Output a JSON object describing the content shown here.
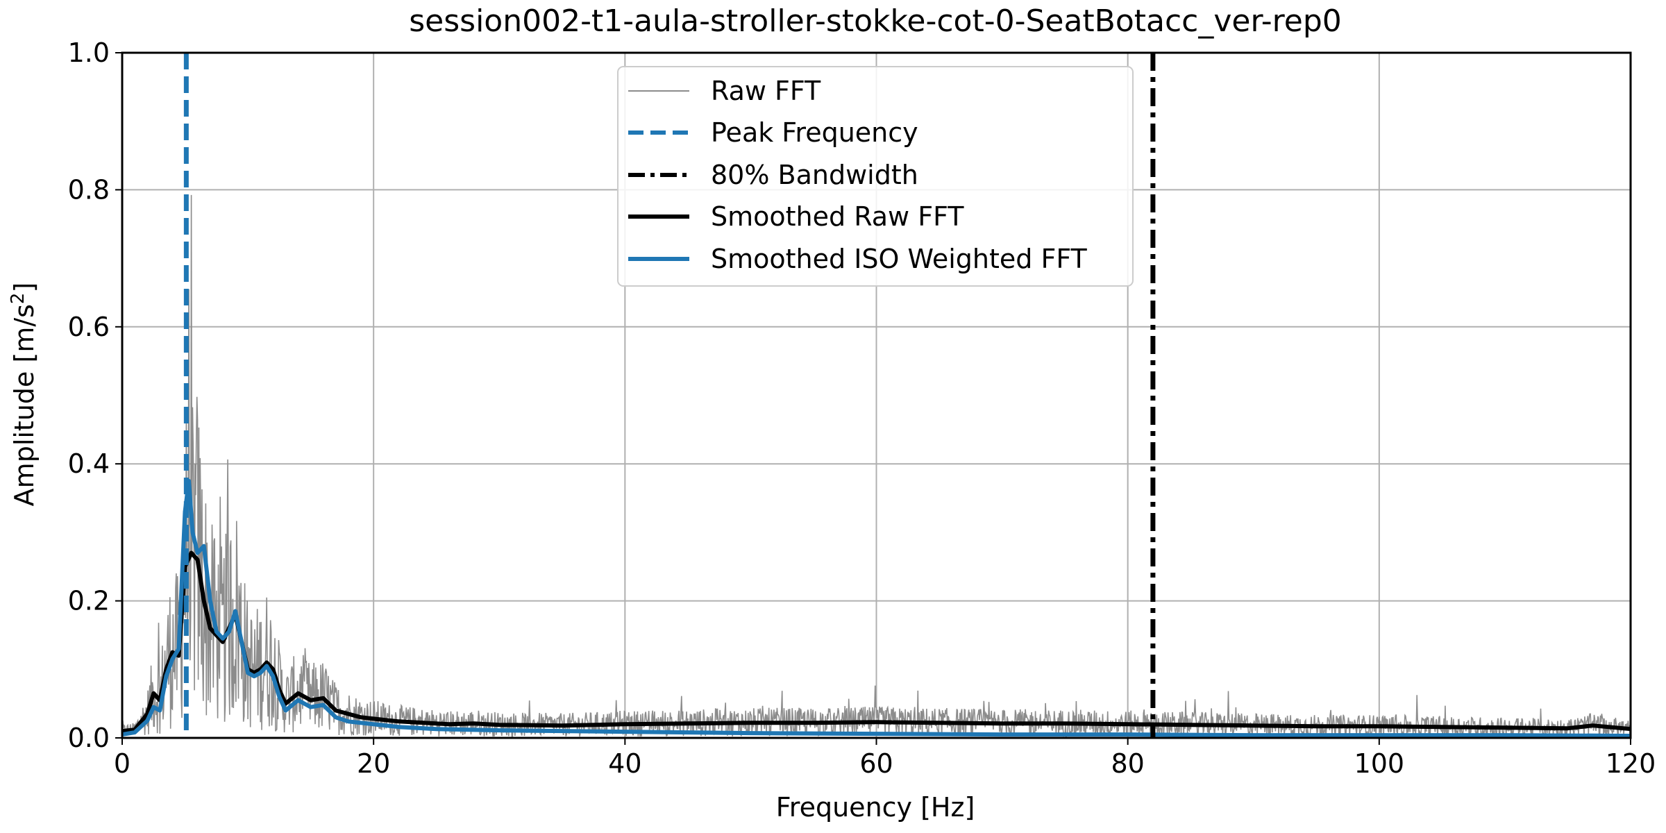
{
  "chart_data": {
    "type": "line",
    "title": "session002-t1-aula-stroller-stokke-cot-0-SeatBotacc_ver-rep0",
    "xlabel": "Frequency [Hz]",
    "ylabel_main": "Amplitude [m/s",
    "ylabel_sup": "2",
    "ylabel_end": "]",
    "xlim": [
      0,
      120
    ],
    "ylim": [
      0,
      1.0
    ],
    "xticks": [
      0,
      20,
      40,
      60,
      80,
      100,
      120
    ],
    "xtick_labels": [
      "0",
      "20",
      "40",
      "60",
      "80",
      "100",
      "120"
    ],
    "yticks": [
      0.0,
      0.2,
      0.4,
      0.6,
      0.8,
      1.0
    ],
    "ytick_labels": [
      "0.0",
      "0.2",
      "0.4",
      "0.6",
      "0.8",
      "1.0"
    ],
    "grid": true,
    "legend_position": "top-center",
    "colors": {
      "raw": "#8c8c8c",
      "peak": "#1f77b4",
      "bandwidth": "#000000",
      "smoothed_raw": "#000000",
      "smoothed_iso": "#1f77b4",
      "grid": "#b0b0b0"
    },
    "peak_frequency": 5.1,
    "bandwidth_80": 82.0,
    "legend": [
      {
        "label": "Raw FFT",
        "style": "thin-gray"
      },
      {
        "label": "Peak Frequency",
        "style": "dashed-blue"
      },
      {
        "label": "80% Bandwidth",
        "style": "dashdot-black"
      },
      {
        "label": "Smoothed Raw FFT",
        "style": "solid-black"
      },
      {
        "label": "Smoothed ISO Weighted FFT",
        "style": "solid-blue"
      }
    ],
    "series": [
      {
        "name": "Smoothed Raw FFT",
        "x": [
          0,
          1,
          2,
          2.5,
          3,
          3.5,
          4,
          4.5,
          5,
          5.5,
          6,
          6.5,
          7,
          7.5,
          8,
          8.5,
          9,
          9.5,
          10,
          10.5,
          11,
          11.5,
          12,
          12.5,
          13,
          14,
          15,
          16,
          17,
          18,
          19,
          20,
          22,
          24,
          26,
          28,
          30,
          35,
          40,
          45,
          50,
          55,
          60,
          65,
          70,
          75,
          80,
          85,
          90,
          95,
          100,
          105,
          110,
          115,
          117,
          120
        ],
        "y": [
          0.01,
          0.012,
          0.035,
          0.065,
          0.055,
          0.1,
          0.125,
          0.12,
          0.25,
          0.27,
          0.26,
          0.2,
          0.16,
          0.15,
          0.14,
          0.16,
          0.18,
          0.14,
          0.1,
          0.095,
          0.1,
          0.11,
          0.1,
          0.07,
          0.05,
          0.065,
          0.055,
          0.058,
          0.04,
          0.035,
          0.03,
          0.028,
          0.024,
          0.022,
          0.02,
          0.021,
          0.019,
          0.018,
          0.02,
          0.021,
          0.022,
          0.022,
          0.023,
          0.022,
          0.021,
          0.021,
          0.02,
          0.019,
          0.018,
          0.017,
          0.017,
          0.016,
          0.015,
          0.014,
          0.018,
          0.013
        ]
      },
      {
        "name": "Smoothed ISO Weighted FFT",
        "x": [
          0,
          1,
          2,
          2.5,
          3,
          3.5,
          4,
          4.5,
          5,
          5.3,
          5.6,
          6,
          6.5,
          7,
          7.5,
          8,
          8.5,
          9,
          9.5,
          10,
          10.5,
          11,
          11.5,
          12,
          12.5,
          13,
          14,
          15,
          16,
          17,
          18,
          20,
          22,
          25,
          30,
          35,
          40,
          45,
          50,
          60,
          70,
          80,
          90,
          100,
          110,
          120
        ],
        "y": [
          0.005,
          0.008,
          0.025,
          0.045,
          0.04,
          0.09,
          0.115,
          0.13,
          0.33,
          0.375,
          0.3,
          0.27,
          0.28,
          0.2,
          0.155,
          0.145,
          0.155,
          0.185,
          0.14,
          0.095,
          0.09,
          0.095,
          0.105,
          0.09,
          0.06,
          0.04,
          0.055,
          0.045,
          0.048,
          0.03,
          0.024,
          0.02,
          0.016,
          0.013,
          0.011,
          0.01,
          0.009,
          0.008,
          0.007,
          0.006,
          0.005,
          0.005,
          0.004,
          0.004,
          0.004,
          0.003
        ]
      }
    ]
  }
}
